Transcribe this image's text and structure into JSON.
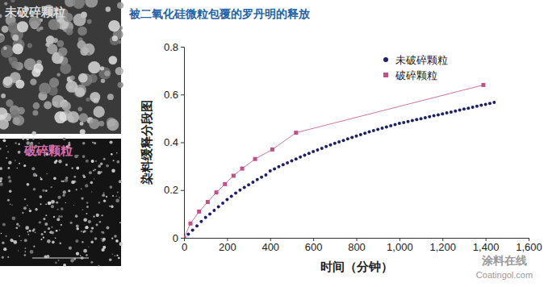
{
  "chart_data": {
    "type": "scatter",
    "title": "被二氧化硅微粒包覆的罗丹明的释放",
    "x_label": "时间（分钟）",
    "y_label": "染料缓释分段图",
    "image_labels": [
      "未破碎颗粒",
      "破碎颗粒"
    ],
    "annotations": [
      "涂料在线",
      "Coatingol.com"
    ],
    "xlim": [
      0,
      1600
    ],
    "ylim": [
      0,
      0.8
    ],
    "xticks": [
      0,
      200,
      400,
      600,
      800,
      {
        "value": 1000,
        "label": "1,000"
      },
      {
        "value": 1200,
        "label": "1,200"
      },
      {
        "value": 1400,
        "label": "1,400"
      },
      {
        "value": 1600,
        "label": "1,600"
      }
    ],
    "yticks": [
      0,
      0.2,
      0.4,
      0.6,
      0.8
    ],
    "grid": false,
    "legend": "upper right",
    "series": [
      {
        "name": "未破碎颗粒",
        "color": "#1f1f6b",
        "marker": "circle",
        "line_style": "none",
        "x": [
          0,
          20,
          40,
          60,
          80,
          100,
          120,
          140,
          160,
          180,
          200,
          220,
          240,
          260,
          280,
          300,
          320,
          340,
          360,
          380,
          400,
          420,
          440,
          460,
          480,
          500,
          520,
          540,
          560,
          580,
          600,
          620,
          640,
          660,
          680,
          700,
          720,
          740,
          760,
          780,
          800,
          820,
          840,
          860,
          880,
          900,
          920,
          940,
          960,
          980,
          1000,
          1020,
          1040,
          1060,
          1080,
          1100,
          1120,
          1140,
          1160,
          1180,
          1200,
          1220,
          1240,
          1260,
          1280,
          1300,
          1320,
          1340,
          1360,
          1380,
          1400,
          1420,
          1440
        ],
        "values": [
          0,
          0.015,
          0.032,
          0.05,
          0.068,
          0.085,
          0.1,
          0.115,
          0.13,
          0.145,
          0.16,
          0.174,
          0.187,
          0.2,
          0.211,
          0.222,
          0.233,
          0.244,
          0.254,
          0.263,
          0.28,
          0.289,
          0.298,
          0.306,
          0.314,
          0.322,
          0.33,
          0.338,
          0.346,
          0.354,
          0.361,
          0.368,
          0.375,
          0.382,
          0.389,
          0.396,
          0.402,
          0.408,
          0.414,
          0.42,
          0.426,
          0.432,
          0.438,
          0.444,
          0.449,
          0.454,
          0.459,
          0.464,
          0.469,
          0.474,
          0.479,
          0.483,
          0.487,
          0.491,
          0.495,
          0.499,
          0.503,
          0.507,
          0.511,
          0.515,
          0.519,
          0.523,
          0.527,
          0.531,
          0.535,
          0.539,
          0.543,
          0.547,
          0.551,
          0.555,
          0.559,
          0.563,
          0.567
        ]
      },
      {
        "name": "破碎颗粒",
        "color": "#c0508a",
        "marker": "square",
        "line_style": "solid",
        "x": [
          0,
          30,
          70,
          110,
          150,
          190,
          230,
          270,
          330,
          410,
          520,
          1390
        ],
        "values": [
          0,
          0.06,
          0.11,
          0.15,
          0.19,
          0.225,
          0.26,
          0.29,
          0.33,
          0.37,
          0.44,
          0.64
        ]
      }
    ]
  }
}
